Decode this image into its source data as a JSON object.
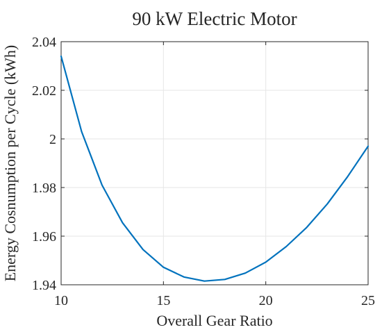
{
  "chart_data": {
    "type": "line",
    "title": "90 kW Electric Motor",
    "xlabel": "Overall Gear Ratio",
    "ylabel": "Energy Cosnumption per Cycle (kWh)",
    "xlim": [
      10,
      25
    ],
    "ylim": [
      1.94,
      2.04
    ],
    "xticks": [
      10,
      15,
      20,
      25
    ],
    "xtick_labels": [
      "10",
      "15",
      "20",
      "25"
    ],
    "yticks": [
      1.94,
      1.96,
      1.98,
      2.0,
      2.02,
      2.04
    ],
    "ytick_labels": [
      "1.94",
      "1.96",
      "1.98",
      "2",
      "2.02",
      "2.04"
    ],
    "grid": true,
    "series": [
      {
        "color": "#0072bd",
        "x": [
          10,
          11,
          12,
          13,
          14,
          15,
          16,
          17,
          18,
          19,
          20,
          21,
          22,
          23,
          24,
          25
        ],
        "y": [
          2.034,
          2.003,
          1.981,
          1.9655,
          1.9545,
          1.9472,
          1.9432,
          1.9415,
          1.9422,
          1.9448,
          1.9493,
          1.9557,
          1.9636,
          1.9732,
          1.9845,
          1.997
        ]
      }
    ]
  }
}
